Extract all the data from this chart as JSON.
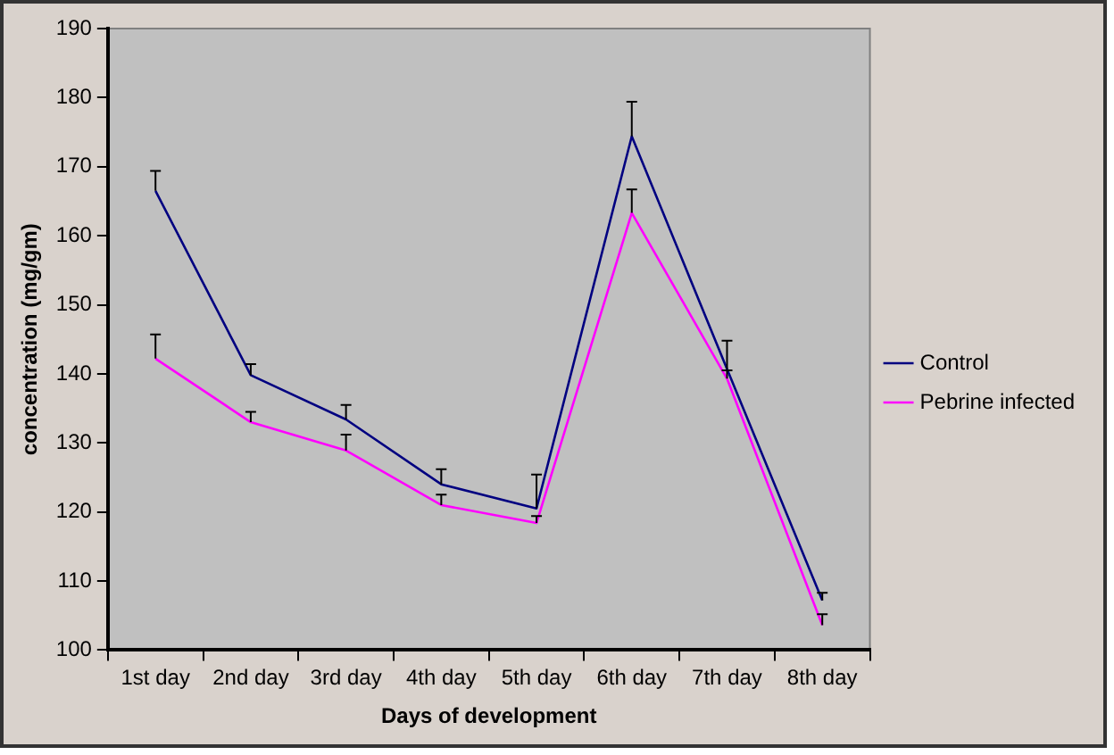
{
  "chart_data": {
    "type": "line",
    "xlabel": "Days of development",
    "ylabel": "concentration (mg/gm)",
    "categories": [
      "1st day",
      "2nd day",
      "3rd day",
      "4th day",
      "5th day",
      "6th day",
      "7th day",
      "8th day"
    ],
    "series": [
      {
        "name": "Control",
        "color": "#000080",
        "values": [
          166.5,
          139.8,
          133.4,
          124.0,
          120.5,
          174.4,
          140.7,
          107.2
        ],
        "errors": [
          [
            166.5,
            169.4
          ],
          [
            139.8,
            141.4
          ],
          [
            133.4,
            135.5
          ],
          [
            124.0,
            126.2
          ],
          [
            120.5,
            125.4
          ],
          [
            174.4,
            179.4
          ],
          [
            140.7,
            144.8
          ],
          [
            107.2,
            108.3
          ]
        ]
      },
      {
        "name": "Pebrine infected",
        "color": "#ff00ff",
        "values": [
          142.2,
          133.0,
          128.9,
          121.0,
          118.4,
          163.3,
          139.3,
          103.6
        ],
        "errors": [
          [
            142.2,
            145.7
          ],
          [
            133.0,
            134.5
          ],
          [
            128.9,
            131.2
          ],
          [
            121.0,
            122.5
          ],
          [
            118.4,
            119.4
          ],
          [
            163.3,
            166.7
          ],
          [
            139.3,
            140.5
          ],
          [
            103.6,
            105.2
          ]
        ]
      }
    ],
    "ylim": [
      100,
      190
    ],
    "yticks": [
      100,
      110,
      120,
      130,
      140,
      150,
      160,
      170,
      180,
      190
    ],
    "grid": false,
    "legend": "right",
    "marker": "none",
    "line_style": "solid"
  }
}
